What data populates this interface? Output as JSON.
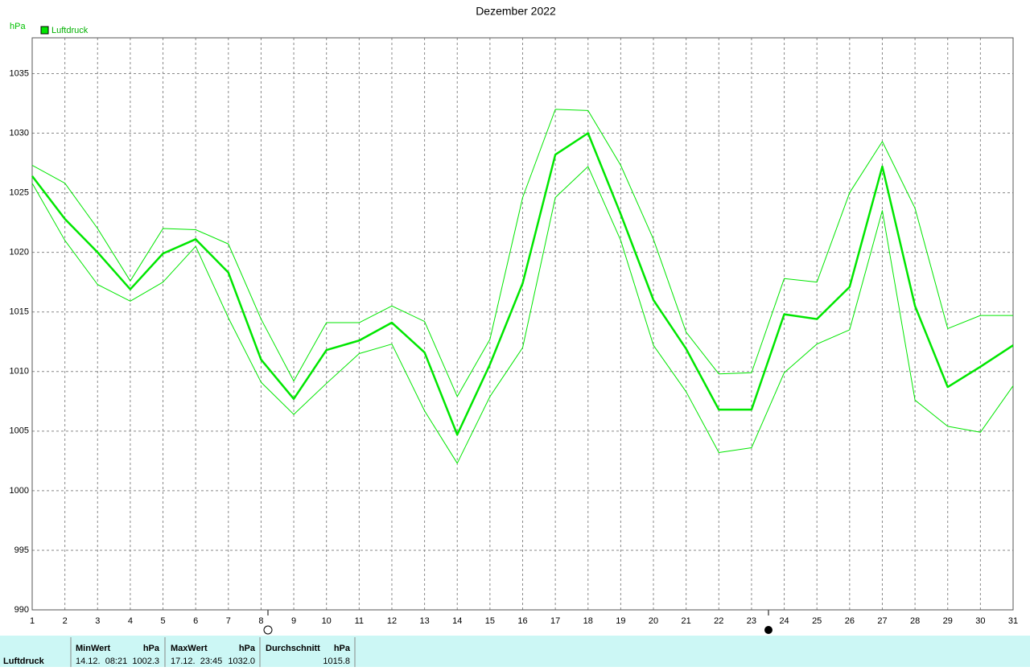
{
  "chart_data": {
    "type": "line",
    "title": "Dezember 2022",
    "y_label": "hPa",
    "x": [
      1,
      2,
      3,
      4,
      5,
      6,
      7,
      8,
      9,
      10,
      11,
      12,
      13,
      14,
      15,
      16,
      17,
      18,
      19,
      20,
      21,
      22,
      23,
      24,
      25,
      26,
      27,
      28,
      29,
      30,
      31
    ],
    "xlim": [
      1,
      31
    ],
    "xticks": [
      1,
      2,
      3,
      4,
      5,
      6,
      7,
      8,
      9,
      10,
      11,
      12,
      13,
      14,
      15,
      16,
      17,
      18,
      19,
      20,
      21,
      22,
      23,
      24,
      25,
      26,
      27,
      28,
      29,
      30,
      31
    ],
    "ylim": [
      990,
      1038
    ],
    "yticks": [
      990,
      995,
      1000,
      1005,
      1010,
      1015,
      1020,
      1025,
      1030,
      1035
    ],
    "grid": true,
    "series": [
      {
        "name": "Luftdruck",
        "color": "#00e600",
        "width": 2.5,
        "values": [
          1026.4,
          1022.8,
          1020.0,
          1016.9,
          1019.9,
          1021.1,
          1018.3,
          1011.0,
          1007.7,
          1011.8,
          1012.6,
          1014.1,
          1011.6,
          1004.7,
          1010.6,
          1017.4,
          1028.2,
          1030.0,
          1023.2,
          1016.0,
          1011.9,
          1006.8,
          1006.8,
          1014.8,
          1014.4,
          1017.1,
          1027.2,
          1015.5,
          1008.7,
          1010.4,
          1012.2
        ]
      },
      {
        "color": "#00e600",
        "width": 1,
        "values": [
          1027.3,
          1025.8,
          1022.0,
          1017.6,
          1022.0,
          1021.9,
          1020.7,
          1014.4,
          1009.2,
          1014.1,
          1014.1,
          1015.5,
          1014.2,
          1007.9,
          1012.7,
          1024.6,
          1032.0,
          1031.9,
          1027.3,
          1021.1,
          1013.3,
          1009.8,
          1009.9,
          1017.8,
          1017.5,
          1025.0,
          1029.3,
          1023.7,
          1013.6,
          1014.7,
          1014.7
        ]
      },
      {
        "color": "#00e600",
        "width": 1,
        "values": [
          1025.8,
          1021.0,
          1017.3,
          1015.9,
          1017.5,
          1020.5,
          1014.5,
          1009.1,
          1006.4,
          1009.0,
          1011.5,
          1012.3,
          1006.7,
          1002.3,
          1007.9,
          1012.0,
          1024.6,
          1027.2,
          1021.0,
          1012.2,
          1008.3,
          1003.2,
          1003.6,
          1009.9,
          1012.3,
          1013.5,
          1023.5,
          1007.6,
          1005.4,
          1004.9,
          1008.8
        ]
      }
    ]
  },
  "summary": {
    "label": "Luftdruck",
    "min": {
      "title": "MinWert",
      "unit": "hPa",
      "time": "14.12.  08:21",
      "value": "1002.3"
    },
    "max": {
      "title": "MaxWert",
      "unit": "hPa",
      "time": "17.12.  23:45",
      "value": "1032.0"
    },
    "avg": {
      "title": "Durchschnitt",
      "unit": "hPa",
      "value": "1015.8"
    }
  }
}
